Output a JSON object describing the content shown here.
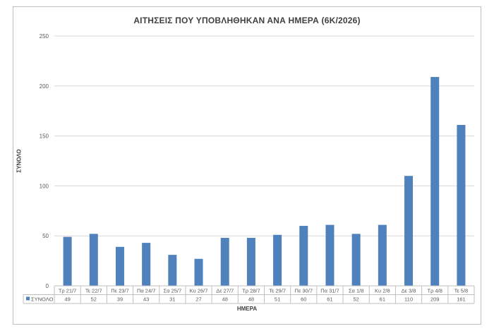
{
  "chart_data": {
    "type": "bar",
    "title": "ΑΙΤΗΣΕΙΣ ΠΟΥ ΥΠΟΒΛΗΘΗΚΑΝ ΑΝΑ ΗΜΕΡΑ (6Κ/2026)",
    "xlabel": "ΗΜΕΡΑ",
    "ylabel": "ΣΥΝΟΛΟ",
    "ylim": [
      0,
      250
    ],
    "yticks": [
      0,
      50,
      100,
      150,
      200,
      250
    ],
    "grid": true,
    "legend_position": "data-table",
    "categories": [
      "Τρ 21/7",
      "Τε 22/7",
      "Πε 23/7",
      "Πα 24/7",
      "Σα 25/7",
      "Κυ 26/7",
      "Δε 27/7",
      "Τρ 28/7",
      "Τε 29/7",
      "Πε 30/7",
      "Πα 31/7",
      "Σα 1/8",
      "Κυ 2/8",
      "Δε 3/8",
      "Τρ 4/8",
      "Τε 5/8"
    ],
    "series": [
      {
        "name": "ΣΥΝΟΛΟ",
        "color": "#4f81bd",
        "values": [
          49,
          52,
          39,
          43,
          31,
          27,
          48,
          48,
          51,
          60,
          61,
          52,
          61,
          110,
          209,
          161
        ]
      }
    ]
  }
}
